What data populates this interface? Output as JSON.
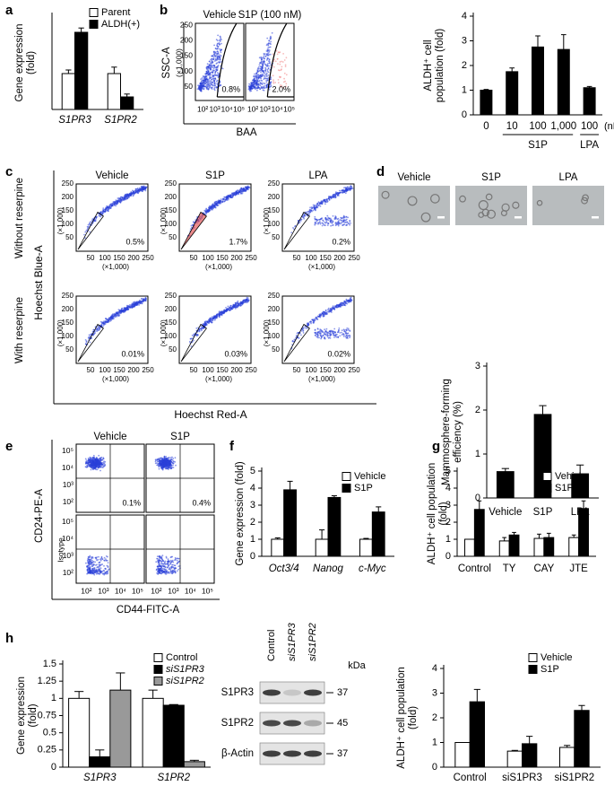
{
  "panel_letters": [
    "a",
    "b",
    "c",
    "d",
    "e",
    "f",
    "g",
    "h"
  ],
  "chart_data": [
    {
      "type": "bar",
      "ylabel": [
        "Gene expression",
        "(fold)"
      ],
      "categories": [
        "S1PR3",
        "S1PR2"
      ],
      "series": [
        {
          "name": "Parent",
          "color": "#ffffff",
          "values": [
            1,
            1
          ],
          "errors": [
            0.1,
            0.18
          ]
        },
        {
          "name": "ALDH(+)",
          "color": "#000000",
          "values": [
            2.15,
            0.35
          ],
          "errors": [
            0.12,
            0.08
          ]
        }
      ],
      "ylim": [
        0,
        2.6
      ],
      "legend": "top-right"
    },
    {
      "type": "bar",
      "ylabel": [
        "ALDH⁺ cell",
        "population (fold)"
      ],
      "categories": [
        "0",
        "10",
        "100",
        "1,000",
        "100"
      ],
      "category_groups": [
        null,
        "S1P",
        "S1P",
        "S1P",
        "LPA"
      ],
      "unit": "(nM)",
      "values": [
        1,
        1.75,
        2.75,
        2.65,
        1.1
      ],
      "errors": [
        0.03,
        0.15,
        0.45,
        0.6,
        0.05
      ],
      "color": "#000000",
      "ylim": [
        0,
        4
      ],
      "yticks": [
        0,
        1,
        2,
        3,
        4
      ]
    },
    {
      "type": "bar",
      "ylabel": [
        "Mammosphere-forming",
        "efficiency (%)"
      ],
      "categories": [
        "Vehicle",
        "S1P",
        "LPA"
      ],
      "values": [
        0.6,
        1.9,
        0.55
      ],
      "errors": [
        0.07,
        0.2,
        0.2
      ],
      "color": "#000000",
      "ylim": [
        0,
        3
      ],
      "yticks": [
        0,
        1,
        2,
        3
      ]
    },
    {
      "type": "bar",
      "ylabel": [
        "Gene expression (fold)"
      ],
      "categories": [
        "Oct3/4",
        "Nanog",
        "c-Myc"
      ],
      "series": [
        {
          "name": "Vehicle",
          "color": "#ffffff",
          "values": [
            1,
            1,
            1
          ],
          "errors": [
            0.08,
            0.55,
            0.05
          ]
        },
        {
          "name": "S1P",
          "color": "#000000",
          "values": [
            3.9,
            3.45,
            2.6
          ],
          "errors": [
            0.5,
            0.1,
            0.3
          ]
        }
      ],
      "ylim": [
        0,
        5
      ],
      "yticks": [
        0,
        1,
        2,
        3,
        4,
        5
      ],
      "legend": "top-right"
    },
    {
      "type": "bar",
      "ylabel": [
        "ALDH⁺ cell population",
        "(fold)"
      ],
      "categories": [
        "Control",
        "TY",
        "CAY",
        "JTE"
      ],
      "series": [
        {
          "name": "Vehicle",
          "color": "#ffffff",
          "values": [
            1,
            0.9,
            1.05,
            1.1
          ],
          "errors": [
            0,
            0.2,
            0.25,
            0.15
          ]
        },
        {
          "name": "S1P",
          "color": "#000000",
          "values": [
            2.75,
            1.25,
            1.1,
            2.8
          ],
          "errors": [
            0.5,
            0.15,
            0.25,
            0.45
          ]
        }
      ],
      "ylim": [
        0,
        5
      ],
      "yticks": [
        0,
        1,
        2,
        3,
        4,
        5
      ],
      "legend": "top-right"
    },
    {
      "type": "bar",
      "ylabel": [
        "Gene expression",
        "(fold)"
      ],
      "categories": [
        "S1PR3",
        "S1PR2"
      ],
      "series": [
        {
          "name": "Control",
          "color": "#ffffff",
          "values": [
            1,
            1
          ],
          "errors": [
            0.1,
            0.12
          ]
        },
        {
          "name": "siS1PR3",
          "color": "#000000",
          "values": [
            0.15,
            0.9
          ],
          "errors": [
            0.1,
            0.01
          ]
        },
        {
          "name": "siS1PR2",
          "color": "#999999",
          "values": [
            1.12,
            0.08
          ],
          "errors": [
            0.25,
            0.02
          ]
        }
      ],
      "ylim": [
        0,
        1.5
      ],
      "yticks": [
        0,
        0.25,
        0.5,
        0.75,
        1,
        1.25,
        1.5
      ],
      "legend": "top-right"
    },
    {
      "type": "bar",
      "ylabel": [
        "ALDH⁺ cell population",
        "(fold)"
      ],
      "categories": [
        "Control",
        "siS1PR3",
        "siS1PR2"
      ],
      "series": [
        {
          "name": "Vehicle",
          "color": "#ffffff",
          "values": [
            1,
            0.65,
            0.8
          ],
          "errors": [
            0,
            0.03,
            0.08
          ]
        },
        {
          "name": "S1P",
          "color": "#000000",
          "values": [
            2.65,
            0.95,
            2.3
          ],
          "errors": [
            0.5,
            0.3,
            0.2
          ]
        }
      ],
      "ylim": [
        0,
        4
      ],
      "yticks": [
        0,
        1,
        2,
        3,
        4
      ],
      "legend": "top-right"
    }
  ],
  "flow_b": {
    "columns": [
      "Vehicle",
      "S1P (100 nM)"
    ],
    "ylabel": "SSC-A",
    "yunit": "(×1,000)",
    "yticks": [
      "50",
      "100",
      "150",
      "200",
      "250"
    ],
    "xticks": [
      "10²",
      "10³",
      "10⁴",
      "10⁵"
    ],
    "xlabel": "BAA",
    "percents": [
      "0.8%",
      "2.0%"
    ]
  },
  "flow_c": {
    "columns": [
      "Vehicle",
      "S1P",
      "LPA"
    ],
    "rows": [
      "Without reserpine",
      "With reserpine"
    ],
    "ylabel": "Hoechst Blue-A",
    "xlabel": "Hoechst Red-A",
    "ticks": [
      "50",
      "100",
      "150",
      "200",
      "250"
    ],
    "unit": "(×1,000)",
    "percents": [
      [
        "0.5%",
        "1.7%",
        "0.2%"
      ],
      [
        "0.01%",
        "0.03%",
        "0.02%"
      ]
    ]
  },
  "mammosphere_d": {
    "columns": [
      "Vehicle",
      "S1P",
      "LPA"
    ]
  },
  "flow_e": {
    "columns": [
      "Vehicle",
      "S1P"
    ],
    "ylabel": "CD24-PE-A",
    "xlabel": "CD44-FITC-A",
    "ticks": [
      "10²",
      "10³",
      "10⁴",
      "10⁵"
    ],
    "row_label": "Isotype",
    "percents": [
      "0.1%",
      "0.4%"
    ]
  },
  "blot_h": {
    "lanes": [
      "Control",
      "siS1PR3",
      "siS1PR2"
    ],
    "bands": [
      "S1PR3",
      "S1PR2",
      "β-Actin"
    ],
    "unit": "kDa",
    "markers": [
      "37",
      "45",
      "37"
    ]
  }
}
